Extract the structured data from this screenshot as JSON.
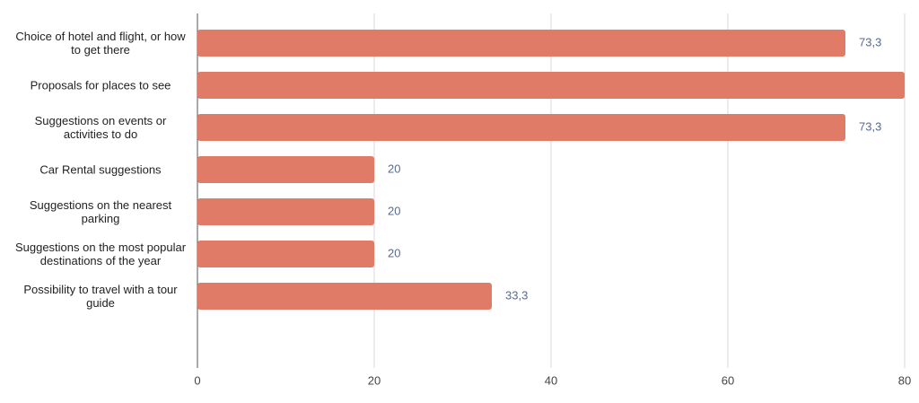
{
  "chart_data": {
    "type": "hbar",
    "categories": [
      "Choice of hotel and flight, or how to get there",
      "Proposals for places to see",
      "Suggestions on events or activities to do",
      "Car Rental suggestions",
      "Suggestions on the nearest parking",
      "Suggestions on the most popular destinations of the year",
      "Possibility to travel with a tour guide"
    ],
    "values": [
      73.3,
      80,
      73.3,
      20,
      20,
      20,
      33.3
    ],
    "value_labels": [
      "73,3",
      null,
      "73,3",
      "20",
      "20",
      "20",
      "33,3"
    ],
    "color": "#e07b68",
    "xlim": [
      0,
      80
    ],
    "xticks": [
      0,
      20,
      40,
      60,
      80
    ],
    "grid": true
  }
}
